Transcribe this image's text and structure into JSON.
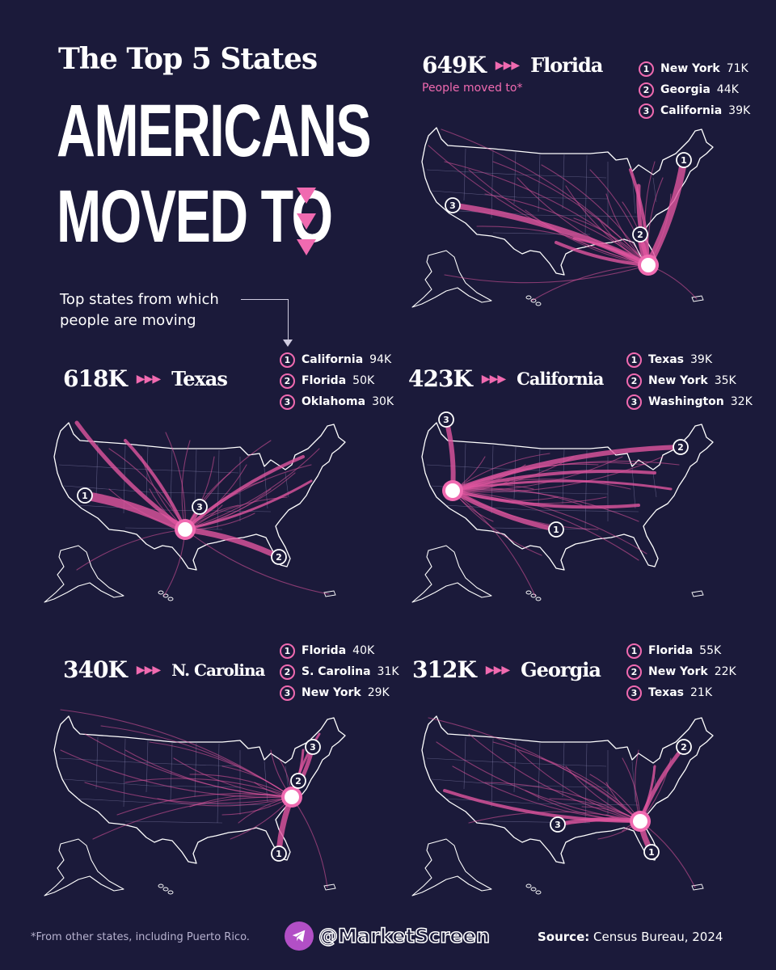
{
  "title": {
    "line1": "The Top 5 States",
    "line2": "AMERICANS",
    "line3": "MOVED TO"
  },
  "subtitle": "Top states from which people are moving",
  "colors": {
    "background": "#1b1a3a",
    "accent": "#f06ab0",
    "flow": "#e0559f",
    "map_border": "#8d89b5"
  },
  "panels": [
    {
      "id": "florida",
      "count": "649K",
      "arrows": "▶▶▶",
      "state": "Florida",
      "note": "People moved to*",
      "sources": [
        {
          "rank": "1",
          "state": "New York",
          "value": "71K"
        },
        {
          "rank": "2",
          "state": "Georgia",
          "value": "44K"
        },
        {
          "rank": "3",
          "state": "California",
          "value": "39K"
        }
      ]
    },
    {
      "id": "texas",
      "count": "618K",
      "arrows": "▶▶▶",
      "state": "Texas",
      "sources": [
        {
          "rank": "1",
          "state": "California",
          "value": "94K"
        },
        {
          "rank": "2",
          "state": "Florida",
          "value": "50K"
        },
        {
          "rank": "3",
          "state": "Oklahoma",
          "value": "30K"
        }
      ]
    },
    {
      "id": "california",
      "count": "423K",
      "arrows": "▶▶▶",
      "state": "California",
      "sources": [
        {
          "rank": "1",
          "state": "Texas",
          "value": "39K"
        },
        {
          "rank": "2",
          "state": "New York",
          "value": "35K"
        },
        {
          "rank": "3",
          "state": "Washington",
          "value": "32K"
        }
      ]
    },
    {
      "id": "ncarolina",
      "count": "340K",
      "arrows": "▶▶▶",
      "state": "N. Carolina",
      "sources": [
        {
          "rank": "1",
          "state": "Florida",
          "value": "40K"
        },
        {
          "rank": "2",
          "state": "S. Carolina",
          "value": "31K"
        },
        {
          "rank": "3",
          "state": "New York",
          "value": "29K"
        }
      ]
    },
    {
      "id": "georgia",
      "count": "312K",
      "arrows": "▶▶▶",
      "state": "Georgia",
      "sources": [
        {
          "rank": "1",
          "state": "Florida",
          "value": "55K"
        },
        {
          "rank": "2",
          "state": "New York",
          "value": "22K"
        },
        {
          "rank": "3",
          "state": "Texas",
          "value": "21K"
        }
      ]
    }
  ],
  "footnote": "*From other states, including Puerto Rico.",
  "handle": "@MarketScreen",
  "source": {
    "label": "Source:",
    "text": "Census Bureau, 2024"
  }
}
